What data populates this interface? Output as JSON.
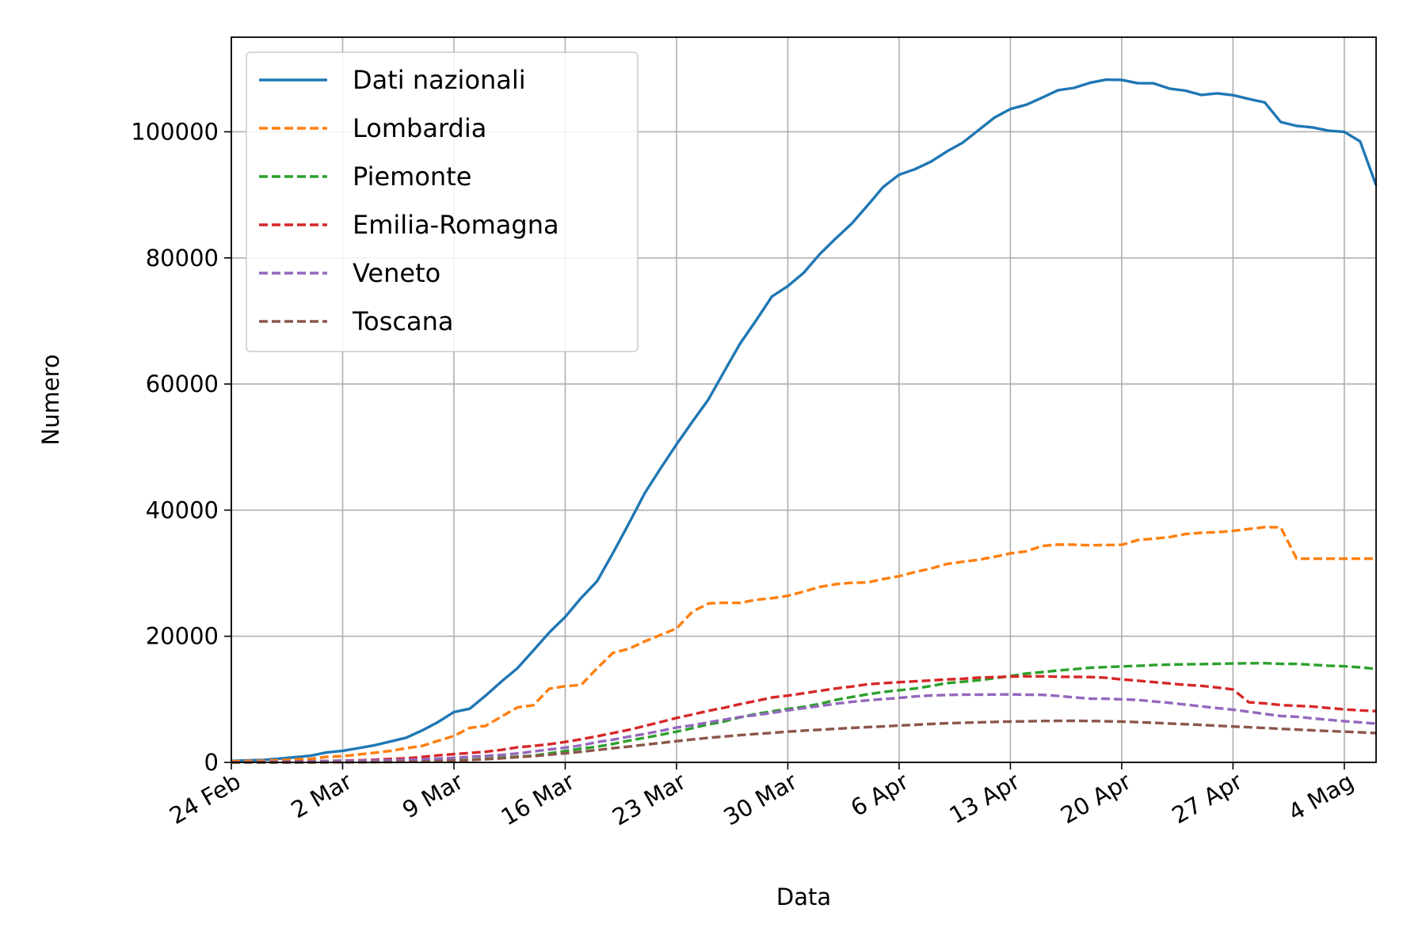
{
  "chart_data": {
    "type": "line",
    "xlabel": "Data",
    "ylabel": "Numero",
    "x_start": "24 Feb",
    "x_end": "5 Mag",
    "x_ticks": [
      {
        "label": "24 Feb",
        "day": 0
      },
      {
        "label": "2 Mar",
        "day": 7
      },
      {
        "label": "9 Mar",
        "day": 14
      },
      {
        "label": "16 Mar",
        "day": 21
      },
      {
        "label": "23 Mar",
        "day": 28
      },
      {
        "label": "30 Mar",
        "day": 35
      },
      {
        "label": "6 Apr",
        "day": 42
      },
      {
        "label": "13 Apr",
        "day": 49
      },
      {
        "label": "20 Apr",
        "day": 56
      },
      {
        "label": "27 Apr",
        "day": 63
      },
      {
        "label": "4 Mag",
        "day": 70
      }
    ],
    "ylim": [
      0,
      115000
    ],
    "y_ticks": [
      0,
      20000,
      40000,
      60000,
      80000,
      100000
    ],
    "grid": true,
    "legend_position": "top-left",
    "series": [
      {
        "name": "Dati nazionali",
        "color": "#1f77b4",
        "dash": "solid",
        "values": [
          221,
          311,
          385,
          588,
          821,
          1049,
          1577,
          1835,
          2263,
          2706,
          3296,
          3916,
          5061,
          6387,
          7985,
          8514,
          10590,
          12839,
          14955,
          17750,
          20603,
          23073,
          26062,
          28710,
          33190,
          37860,
          42681,
          46638,
          50418,
          54030,
          57521,
          62013,
          66414,
          70065,
          73880,
          75528,
          77635,
          80572,
          83049,
          85388,
          88274,
          91246,
          93187,
          94067,
          95262,
          96877,
          98273,
          100269,
          102253,
          103616,
          104291,
          105418,
          106607,
          106962,
          107771,
          108257,
          108237,
          107709,
          107699,
          106848,
          106527,
          105847,
          106103,
          105813,
          105205,
          104657,
          101551,
          100943,
          100704,
          100179,
          99980,
          98467,
          91528
        ]
      },
      {
        "name": "Lombardia",
        "color": "#ff7f0e",
        "dash": "dashed",
        "values": [
          166,
          231,
          249,
          349,
          474,
          552,
          887,
          984,
          1254,
          1520,
          1820,
          2251,
          2612,
          3420,
          4189,
          5469,
          5791,
          7280,
          8725,
          9059,
          11685,
          12095,
          12266,
          14905,
          17370,
          18006,
          19184,
          20215,
          21231,
          23895,
          25197,
          25319,
          25288,
          25781,
          26021,
          26410,
          27079,
          27817,
          28265,
          28472,
          28519,
          29077,
          29529,
          30186,
          30742,
          31467,
          31815,
          32125,
          32601,
          33150,
          33469,
          34313,
          34545,
          34519,
          34419,
          34474,
          34500,
          35255,
          35479,
          35717,
          36211,
          36405,
          36496,
          36714,
          37008,
          37307,
          37279,
          32305,
          32305,
          32305,
          32305,
          32305,
          32305
        ]
      },
      {
        "name": "Piemonte",
        "color": "#2ca02c",
        "dash": "dashed",
        "values": [
          0,
          0,
          0,
          0,
          2,
          3,
          11,
          49,
          56,
          82,
          105,
          143,
          207,
          305,
          345,
          401,
          580,
          766,
          914,
          1060,
          1431,
          1801,
          2183,
          2482,
          2931,
          3442,
          3902,
          4374,
          4872,
          5429,
          6012,
          6487,
          7138,
          7688,
          8083,
          8487,
          8818,
          9263,
          9888,
          10355,
          10782,
          11155,
          11440,
          11708,
          12119,
          12562,
          12780,
          13014,
          13340,
          13692,
          14095,
          14315,
          14582,
          14776,
          14998,
          15116,
          15220,
          15306,
          15434,
          15504,
          15550,
          15582,
          15625,
          15683,
          15723,
          15737,
          15630,
          15608,
          15476,
          15332,
          15246,
          15069,
          14825
        ]
      },
      {
        "name": "Emilia-Romagna",
        "color": "#d62728",
        "dash": "dashed",
        "values": [
          18,
          26,
          47,
          97,
          140,
          185,
          215,
          274,
          327,
          420,
          534,
          635,
          870,
          1101,
          1305,
          1494,
          1683,
          1988,
          2393,
          2599,
          2892,
          3243,
          3666,
          4143,
          4640,
          5160,
          5775,
          6397,
          7041,
          7599,
          8168,
          8663,
          9241,
          9746,
          10300,
          10581,
          10957,
          11353,
          11716,
          12018,
          12385,
          12553,
          12720,
          12858,
          12993,
          13156,
          13254,
          13450,
          13523,
          13598,
          13645,
          13652,
          13575,
          13556,
          13534,
          13422,
          13163,
          12952,
          12730,
          12513,
          12287,
          12140,
          11877,
          11566,
          9524,
          9365,
          9086,
          8961,
          8860,
          8625,
          8398,
          8251,
          8132
        ]
      },
      {
        "name": "Veneto",
        "color": "#9467bd",
        "dash": "dashed",
        "values": [
          32,
          43,
          71,
          111,
          116,
          149,
          185,
          249,
          263,
          307,
          345,
          383,
          464,
          585,
          719,
          887,
          1031,
          1176,
          1415,
          1729,
          2043,
          2332,
          2695,
          3208,
          3601,
          4084,
          4502,
          5003,
          5522,
          5876,
          6343,
          6775,
          7195,
          7493,
          7849,
          8252,
          8603,
          8928,
          9287,
          9596,
          9833,
          10025,
          10219,
          10455,
          10603,
          10680,
          10743,
          10746,
          10760,
          10787,
          10736,
          10710,
          10532,
          10304,
          10109,
          10094,
          9996,
          9900,
          9672,
          9436,
          9162,
          8887,
          8608,
          8358,
          8026,
          7686,
          7359,
          7237,
          6979,
          6760,
          6529,
          6352,
          6138
        ]
      },
      {
        "name": "Toscana",
        "color": "#8c564b",
        "dash": "dashed",
        "values": [
          0,
          2,
          2,
          2,
          6,
          11,
          13,
          17,
          25,
          34,
          56,
          83,
          141,
          203,
          276,
          363,
          497,
          654,
          823,
          998,
          1224,
          1436,
          1696,
          1962,
          2248,
          2504,
          2795,
          3071,
          3365,
          3623,
          3888,
          4111,
          4316,
          4501,
          4687,
          4873,
          5032,
          5176,
          5325,
          5456,
          5583,
          5704,
          5833,
          5967,
          6090,
          6204,
          6277,
          6350,
          6414,
          6477,
          6520,
          6563,
          6581,
          6588,
          6562,
          6510,
          6464,
          6382,
          6274,
          6168,
          6054,
          5935,
          5810,
          5689,
          5570,
          5446,
          5317,
          5208,
          5083,
          4969,
          4865,
          4760,
          4650
        ]
      }
    ]
  }
}
